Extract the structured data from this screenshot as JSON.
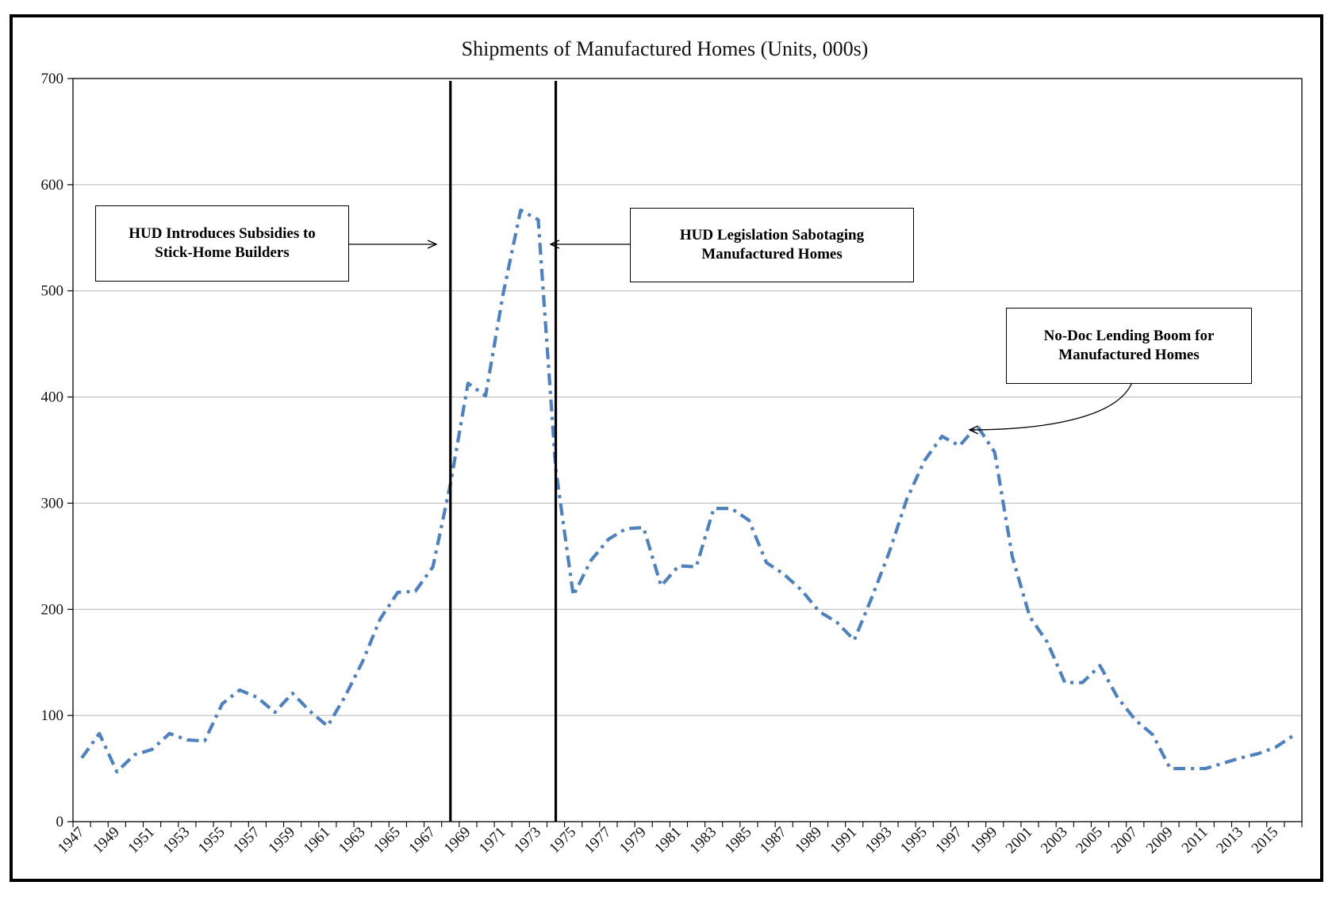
{
  "chart_data": {
    "type": "line",
    "title": "Shipments of Manufactured Homes (Units, 000s)",
    "xlabel": "",
    "ylabel": "",
    "ylim": [
      0,
      700
    ],
    "yticks": [
      0,
      100,
      200,
      300,
      400,
      500,
      600,
      700
    ],
    "grid": true,
    "x": [
      1947,
      1948,
      1949,
      1950,
      1951,
      1952,
      1953,
      1954,
      1955,
      1956,
      1957,
      1958,
      1959,
      1960,
      1961,
      1962,
      1963,
      1964,
      1965,
      1966,
      1967,
      1968,
      1969,
      1970,
      1971,
      1972,
      1973,
      1974,
      1975,
      1976,
      1977,
      1978,
      1979,
      1980,
      1981,
      1982,
      1983,
      1984,
      1985,
      1986,
      1987,
      1988,
      1989,
      1990,
      1991,
      1992,
      1993,
      1994,
      1995,
      1996,
      1997,
      1998,
      1999,
      2000,
      2001,
      2002,
      2003,
      2004,
      2005,
      2006,
      2007,
      2008,
      2009,
      2010,
      2011,
      2012,
      2013,
      2014,
      2015,
      2016
    ],
    "xtick_labels": [
      "1947",
      "1949",
      "1951",
      "1953",
      "1955",
      "1957",
      "1959",
      "1961",
      "1963",
      "1965",
      "1967",
      "1969",
      "1971",
      "1973",
      "1975",
      "1977",
      "1979",
      "1981",
      "1983",
      "1985",
      "1987",
      "1989",
      "1991",
      "1993",
      "1995",
      "1997",
      "1999",
      "2001",
      "2003",
      "2005",
      "2007",
      "2009",
      "2011",
      "2013",
      "2015"
    ],
    "series": [
      {
        "name": "Shipments",
        "color": "#4F81BD",
        "values": [
          60,
          83,
          47,
          63,
          68,
          83,
          77,
          76,
          111,
          124,
          117,
          103,
          121,
          104,
          90,
          118,
          151,
          191,
          216,
          217,
          240,
          318,
          413,
          401,
          497,
          576,
          567,
          332,
          213,
          246,
          266,
          276,
          277,
          222,
          241,
          240,
          295,
          295,
          284,
          244,
          233,
          218,
          198,
          188,
          171,
          211,
          254,
          304,
          340,
          363,
          354,
          373,
          348,
          250,
          193,
          169,
          131,
          131,
          147,
          117,
          96,
          82,
          50,
          50,
          50,
          55,
          60,
          64,
          70,
          81
        ]
      }
    ],
    "reference_lines": [
      {
        "name": "hud-subsidies-line",
        "x": 1968
      },
      {
        "name": "hud-legislation-line",
        "x": 1974
      }
    ],
    "annotations": [
      {
        "name": "subsidies-annotation",
        "lines": [
          "HUD Introduces Subsidies to",
          "Stick-Home Builders"
        ]
      },
      {
        "name": "legislation-annotation",
        "lines": [
          "HUD Legislation Sabotaging",
          "Manufactured Homes"
        ]
      },
      {
        "name": "nodoc-annotation",
        "lines": [
          "No-Doc Lending Boom for",
          "Manufactured Homes"
        ]
      }
    ]
  }
}
